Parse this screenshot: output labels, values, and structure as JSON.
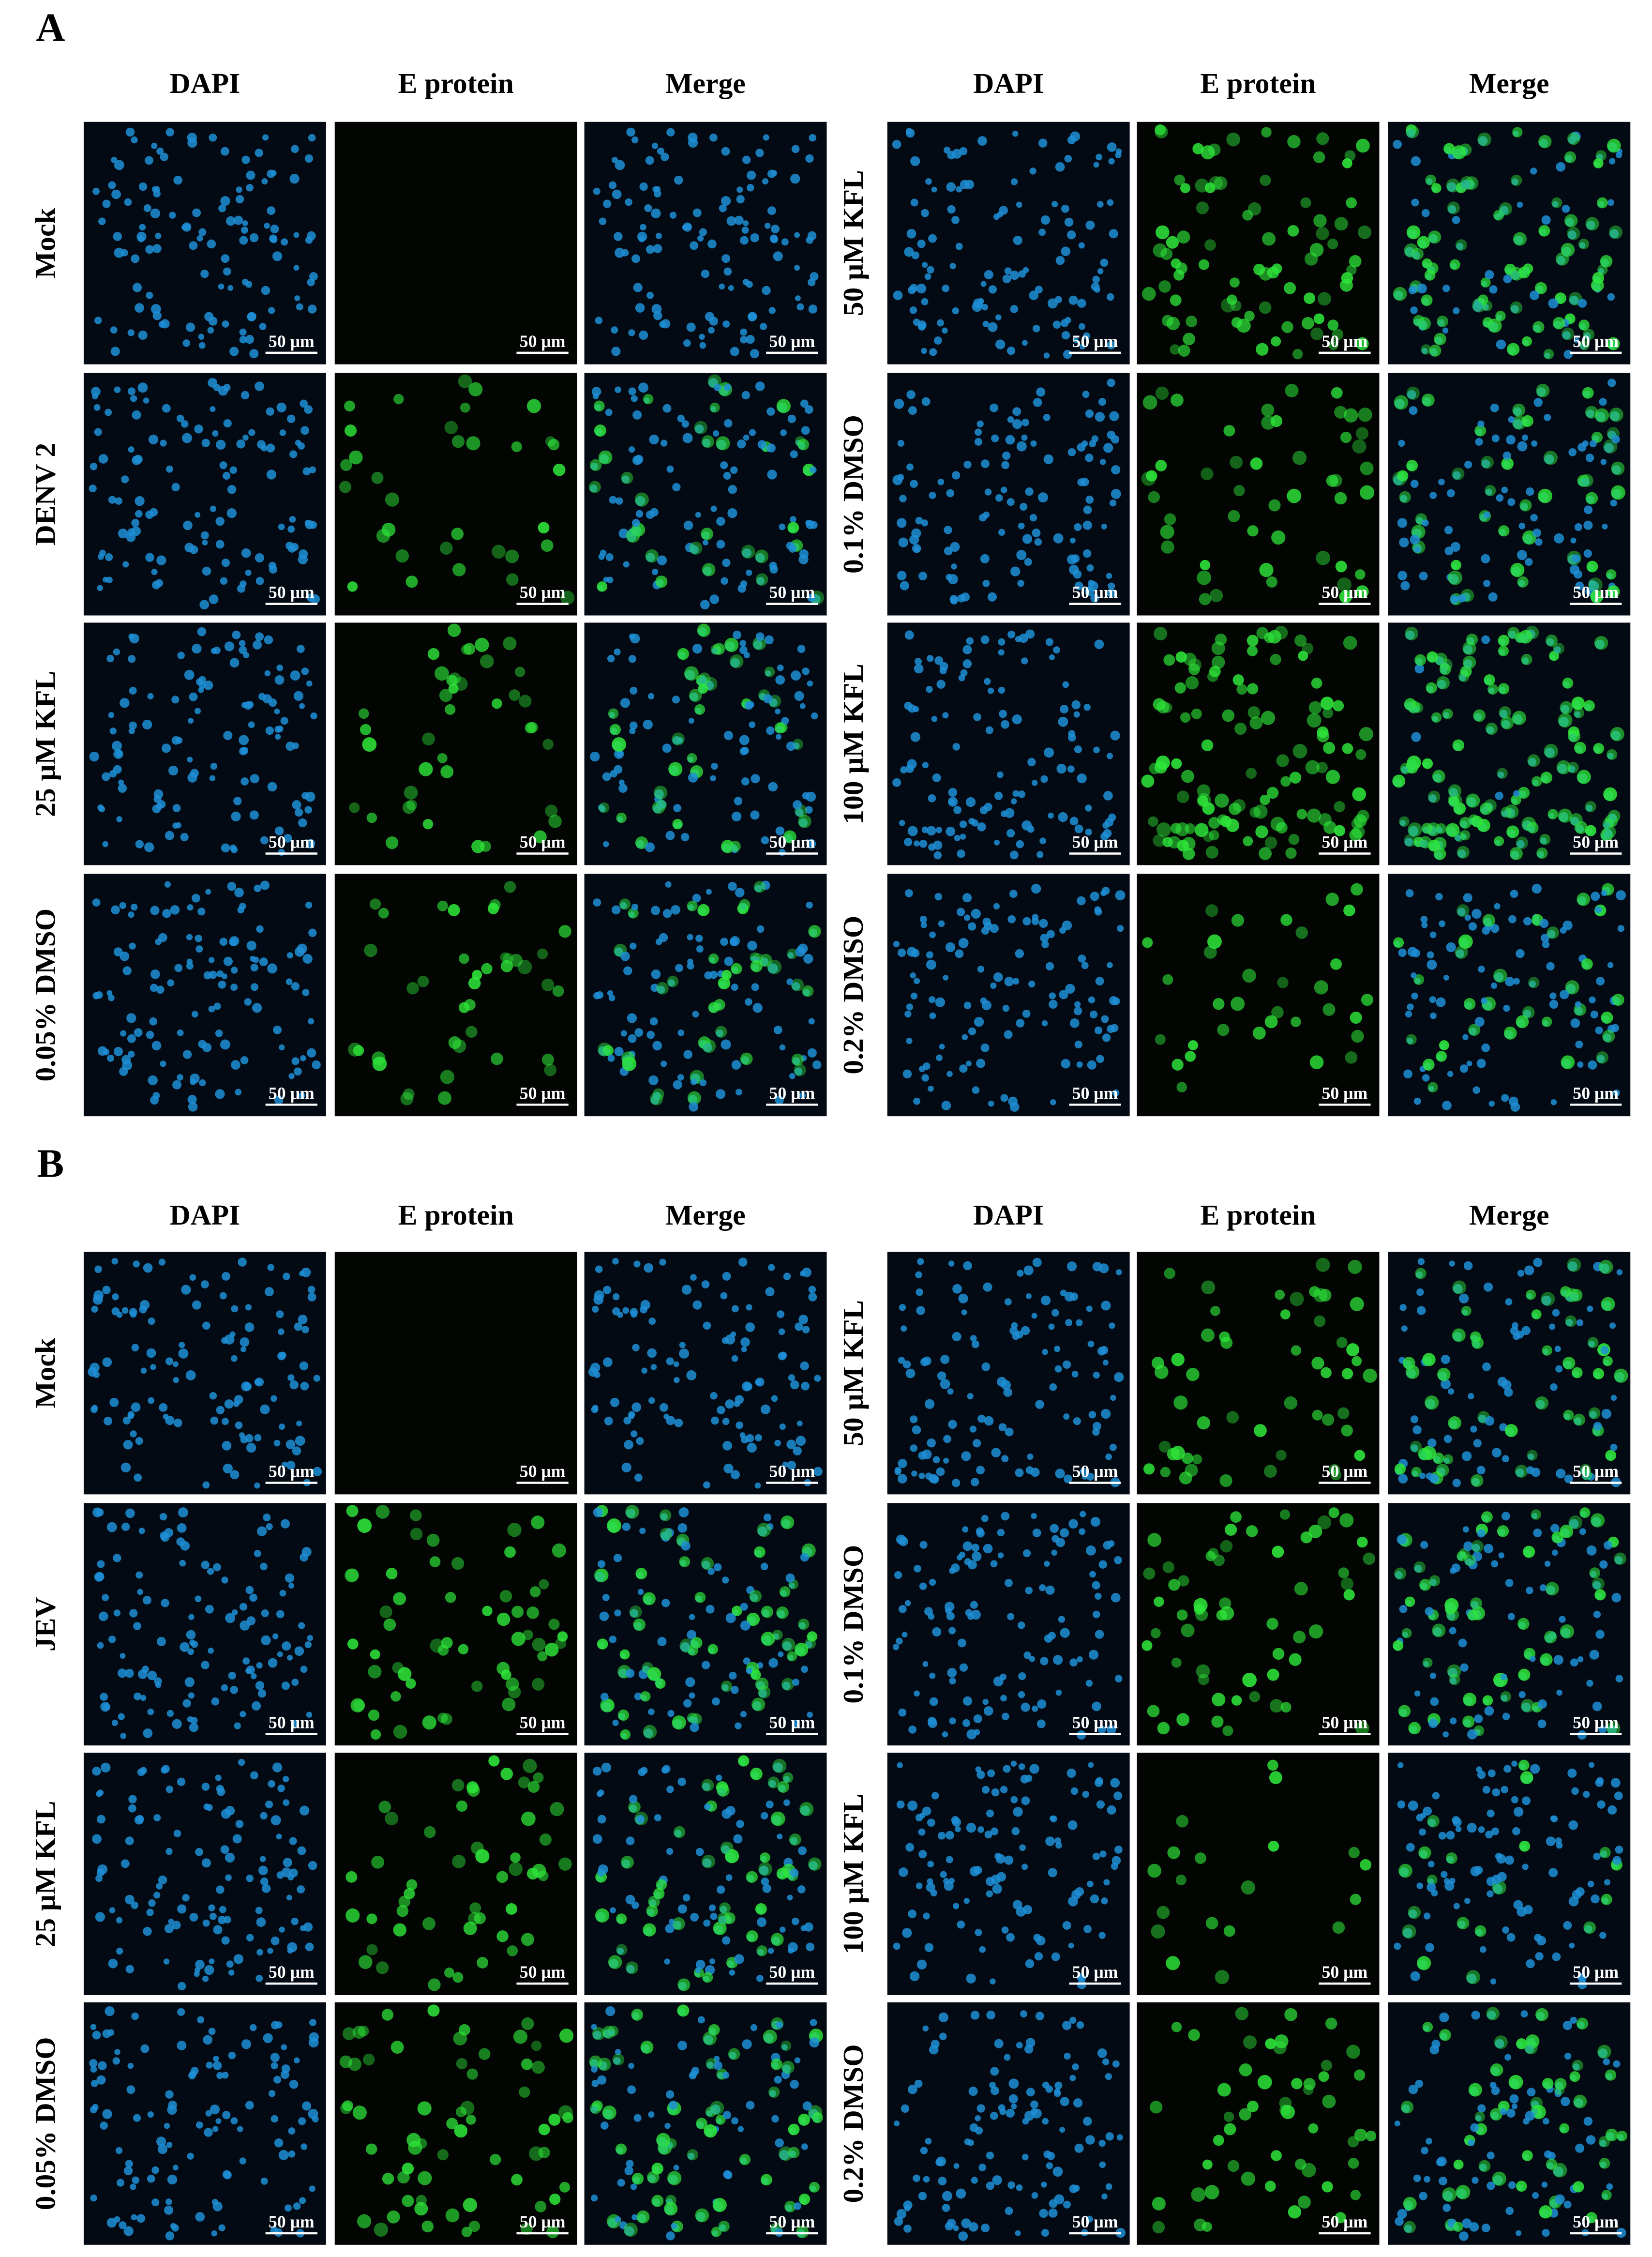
{
  "panels": [
    {
      "label": "A",
      "columns": [
        "DAPI",
        "E protein",
        "Merge"
      ],
      "left_rows": [
        "Mock",
        "DENV 2",
        "25 μM KFL",
        "0.05% DMSO"
      ],
      "right_rows": [
        "50 μM KFL",
        "0.1% DMSO",
        "100 μM KFL",
        "0.2% DMSO"
      ]
    },
    {
      "label": "B",
      "columns": [
        "DAPI",
        "E protein",
        "Merge"
      ],
      "left_rows": [
        "Mock",
        "JEV",
        "25 μM KFL",
        "0.05% DMSO"
      ],
      "right_rows": [
        "50 μM KFL",
        "0.1% DMSO",
        "100 μM KFL",
        "0.2% DMSO"
      ]
    }
  ],
  "scale_bar": "50 μm"
}
